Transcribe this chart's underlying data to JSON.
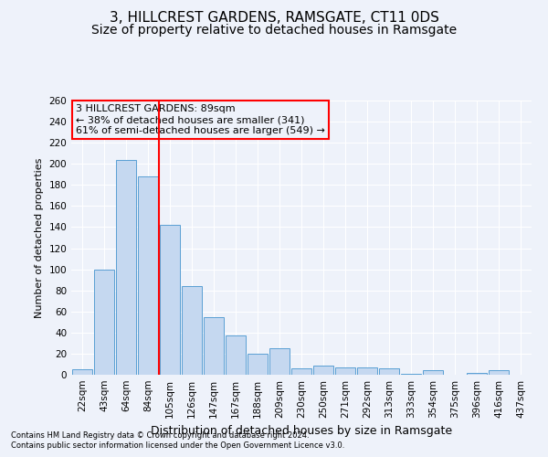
{
  "title": "3, HILLCREST GARDENS, RAMSGATE, CT11 0DS",
  "subtitle": "Size of property relative to detached houses in Ramsgate",
  "xlabel": "Distribution of detached houses by size in Ramsgate",
  "ylabel": "Number of detached properties",
  "categories": [
    "22sqm",
    "43sqm",
    "64sqm",
    "84sqm",
    "105sqm",
    "126sqm",
    "147sqm",
    "167sqm",
    "188sqm",
    "209sqm",
    "230sqm",
    "250sqm",
    "271sqm",
    "292sqm",
    "313sqm",
    "333sqm",
    "354sqm",
    "375sqm",
    "396sqm",
    "416sqm",
    "437sqm"
  ],
  "values": [
    5,
    100,
    204,
    188,
    142,
    84,
    55,
    37,
    20,
    25,
    6,
    9,
    7,
    7,
    6,
    1,
    4,
    0,
    2,
    4,
    0
  ],
  "bar_color": "#c5d8f0",
  "bar_edge_color": "#5a9fd4",
  "redline_x": 3.5,
  "annotation_title": "3 HILLCREST GARDENS: 89sqm",
  "annotation_line1": "← 38% of detached houses are smaller (341)",
  "annotation_line2": "61% of semi-detached houses are larger (549) →",
  "footer1": "Contains HM Land Registry data © Crown copyright and database right 2024.",
  "footer2": "Contains public sector information licensed under the Open Government Licence v3.0.",
  "ylim": [
    0,
    260
  ],
  "yticks": [
    0,
    20,
    40,
    60,
    80,
    100,
    120,
    140,
    160,
    180,
    200,
    220,
    240,
    260
  ],
  "bg_color": "#eef2fa",
  "grid_color": "#ffffff",
  "title_fontsize": 11,
  "subtitle_fontsize": 10,
  "ylabel_fontsize": 8,
  "xlabel_fontsize": 9,
  "tick_fontsize": 7.5,
  "footer_fontsize": 6,
  "ann_fontsize": 8
}
